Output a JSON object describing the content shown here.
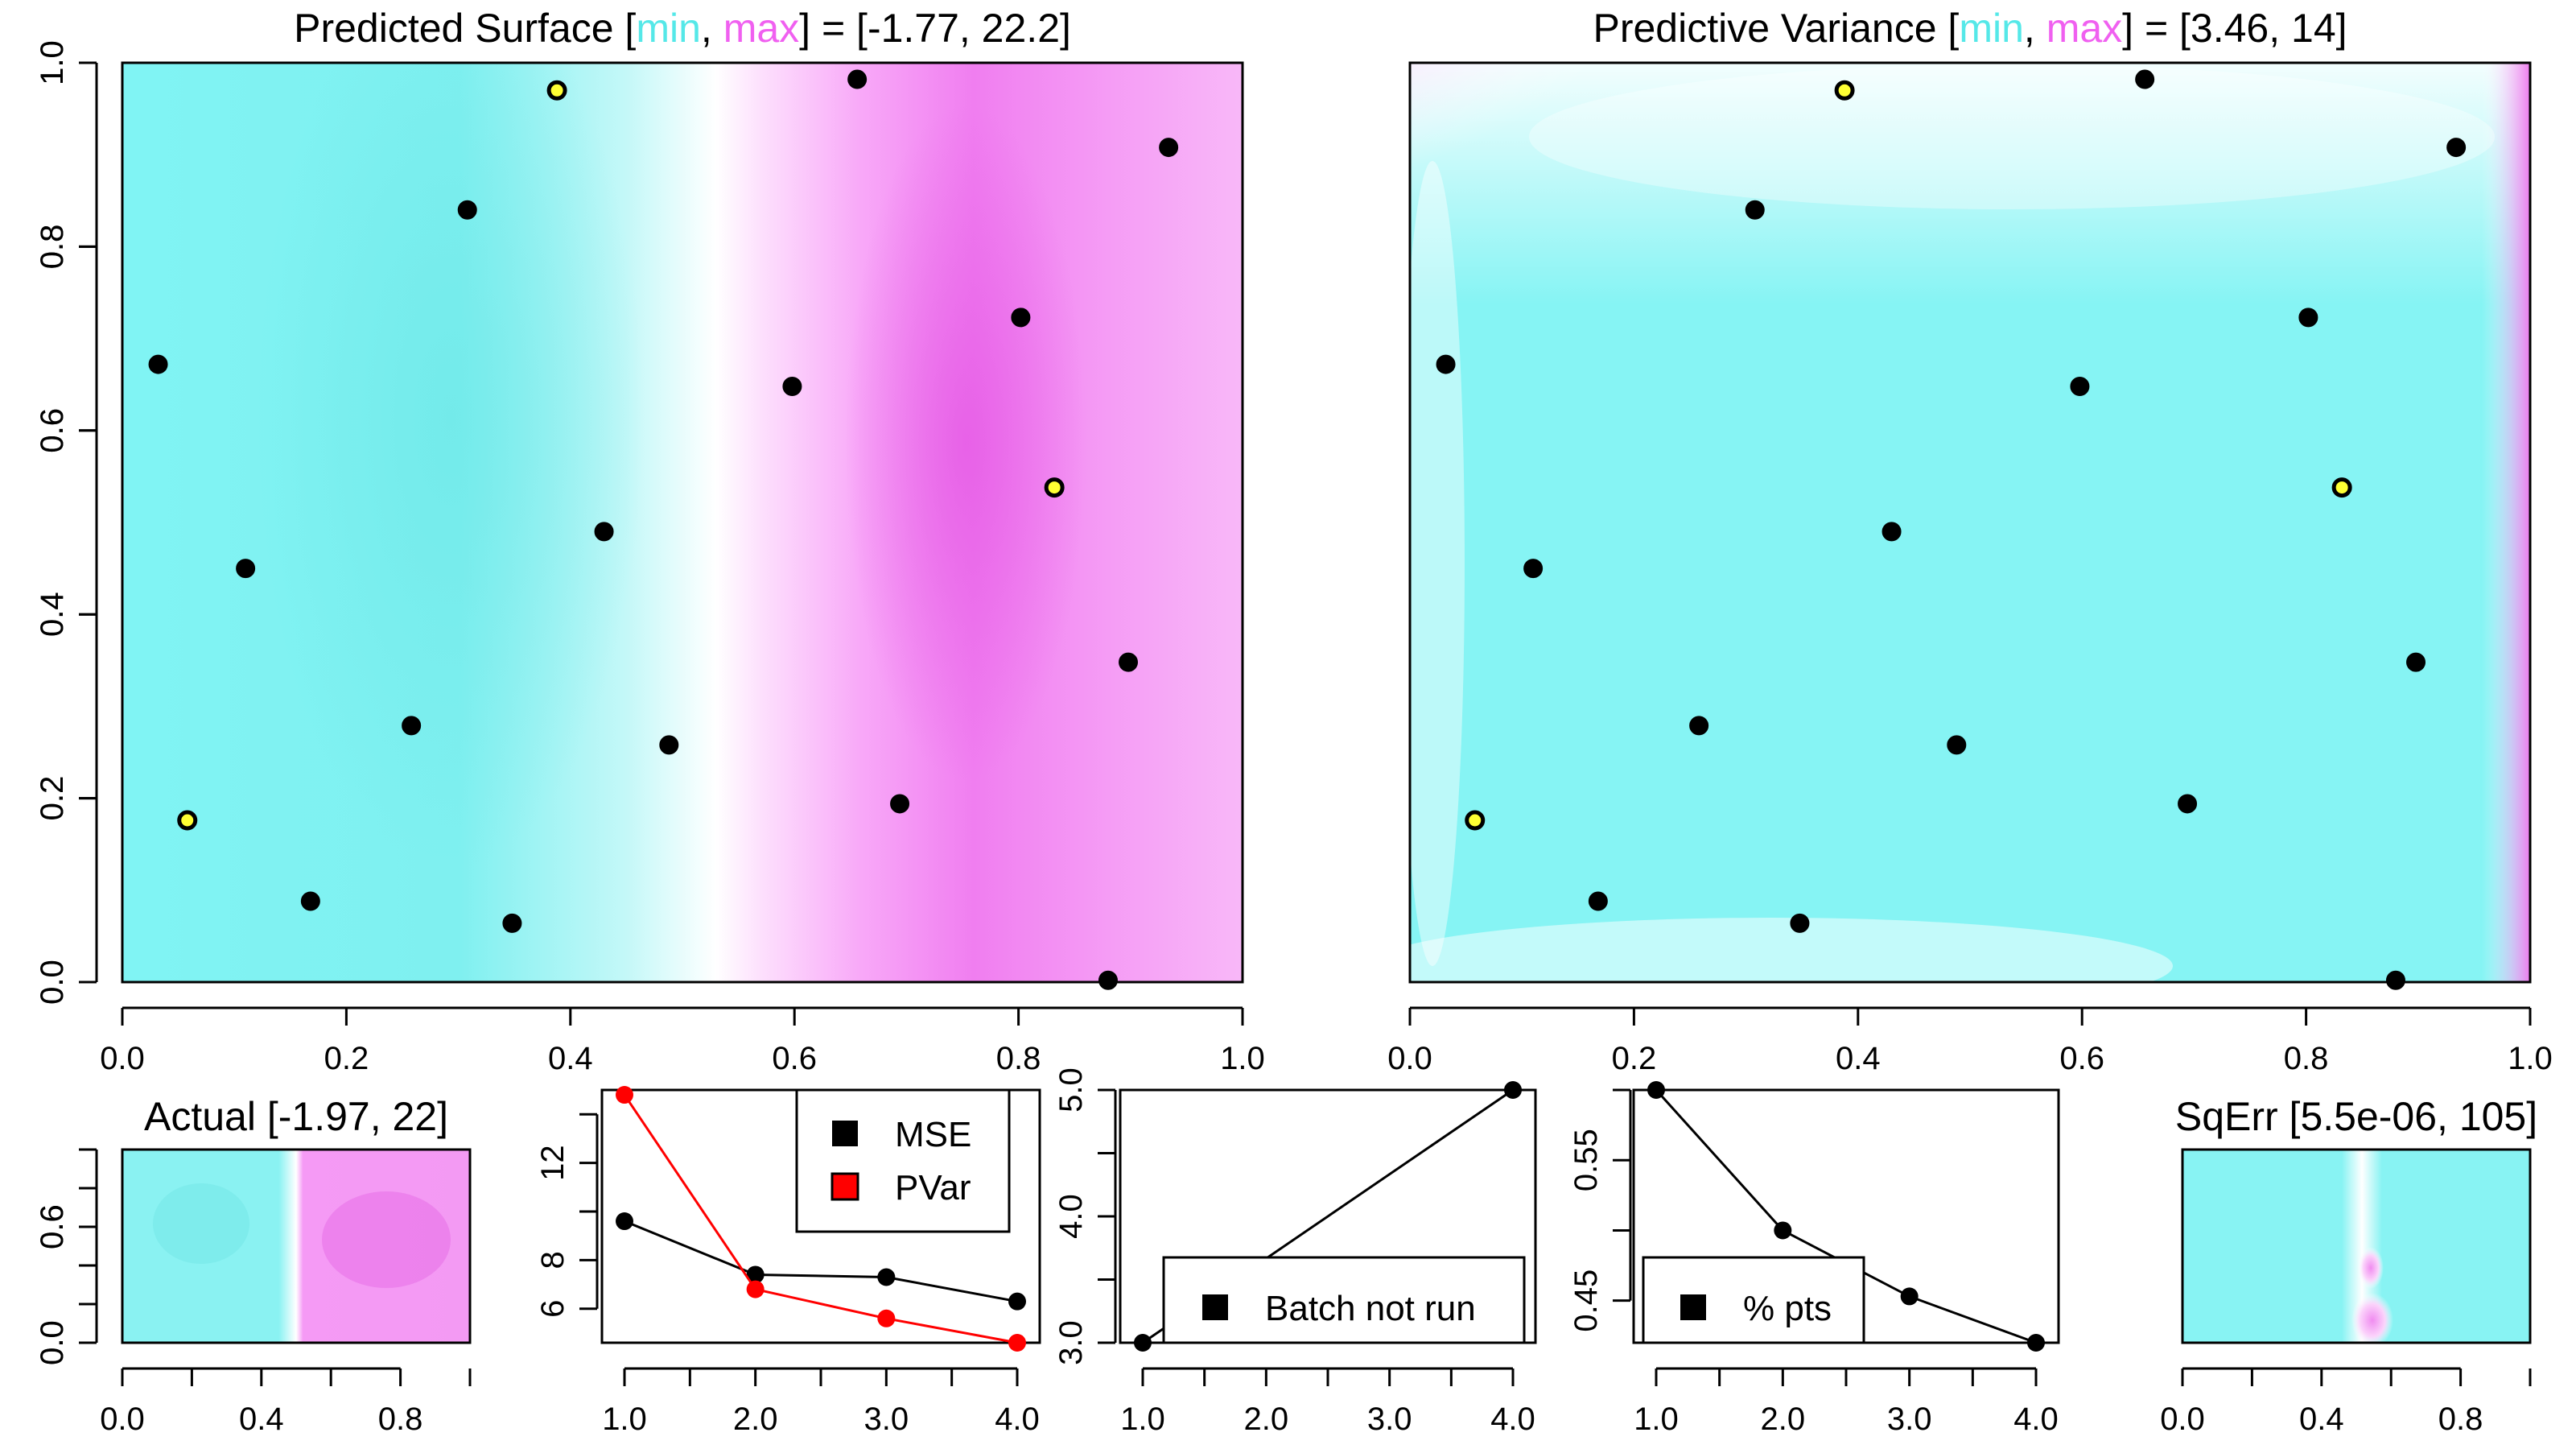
{
  "colors": {
    "low": "#7FFFFF",
    "mid": "#FFFFFF",
    "high": "#FF7FFF",
    "point": "#000000",
    "highlight": "#FFFF33",
    "pvar": "#FF0000"
  },
  "chart_data": [
    {
      "id": "predicted-surface",
      "type": "heatmap",
      "title_parts": [
        "Predicted Surface [",
        "min",
        ", ",
        "max",
        "] = [-1.77, 22.2]"
      ],
      "xlim": [
        0,
        1
      ],
      "ylim": [
        0,
        1
      ],
      "x_ticks": [
        "0.0",
        "0.2",
        "0.4",
        "0.6",
        "0.8",
        "1.0"
      ],
      "y_ticks": [
        "0.0",
        "0.2",
        "0.4",
        "0.6",
        "0.8",
        "1.0"
      ],
      "range": [
        -1.77,
        22.2
      ],
      "points": [
        {
          "x": 0.032,
          "y": 0.672
        },
        {
          "x": 0.11,
          "y": 0.45
        },
        {
          "x": 0.168,
          "y": 0.088
        },
        {
          "x": 0.258,
          "y": 0.279
        },
        {
          "x": 0.308,
          "y": 0.84
        },
        {
          "x": 0.348,
          "y": 0.064
        },
        {
          "x": 0.43,
          "y": 0.49
        },
        {
          "x": 0.488,
          "y": 0.258
        },
        {
          "x": 0.598,
          "y": 0.648
        },
        {
          "x": 0.656,
          "y": 0.982
        },
        {
          "x": 0.694,
          "y": 0.194
        },
        {
          "x": 0.802,
          "y": 0.723
        },
        {
          "x": 0.88,
          "y": 0.002
        },
        {
          "x": 0.898,
          "y": 0.348
        },
        {
          "x": 0.934,
          "y": 0.908
        }
      ],
      "highlight_points": [
        {
          "x": 0.058,
          "y": 0.176
        },
        {
          "x": 0.388,
          "y": 0.97
        },
        {
          "x": 0.832,
          "y": 0.538
        }
      ]
    },
    {
      "id": "predictive-variance",
      "type": "heatmap",
      "title_parts": [
        "Predictive Variance [",
        "min",
        ", ",
        "max",
        "] = [3.46, 14]"
      ],
      "xlim": [
        0,
        1
      ],
      "ylim": [
        0,
        1
      ],
      "x_ticks": [
        "0.0",
        "0.2",
        "0.4",
        "0.6",
        "0.8",
        "1.0"
      ],
      "y_ticks": [
        "0.0",
        "0.2",
        "0.4",
        "0.6",
        "0.8",
        "1.0"
      ],
      "range": [
        3.46,
        14
      ],
      "points": [
        {
          "x": 0.032,
          "y": 0.672
        },
        {
          "x": 0.11,
          "y": 0.45
        },
        {
          "x": 0.168,
          "y": 0.088
        },
        {
          "x": 0.258,
          "y": 0.279
        },
        {
          "x": 0.308,
          "y": 0.84
        },
        {
          "x": 0.348,
          "y": 0.064
        },
        {
          "x": 0.43,
          "y": 0.49
        },
        {
          "x": 0.488,
          "y": 0.258
        },
        {
          "x": 0.598,
          "y": 0.648
        },
        {
          "x": 0.656,
          "y": 0.982
        },
        {
          "x": 0.694,
          "y": 0.194
        },
        {
          "x": 0.802,
          "y": 0.723
        },
        {
          "x": 0.88,
          "y": 0.002
        },
        {
          "x": 0.898,
          "y": 0.348
        },
        {
          "x": 0.934,
          "y": 0.908
        }
      ],
      "highlight_points": [
        {
          "x": 0.058,
          "y": 0.176
        },
        {
          "x": 0.388,
          "y": 0.97
        },
        {
          "x": 0.832,
          "y": 0.538
        }
      ]
    },
    {
      "id": "actual",
      "type": "heatmap",
      "title": "Actual [-1.97, 22]",
      "xlim": [
        0,
        1
      ],
      "ylim": [
        0,
        1
      ],
      "x_ticks": [
        "0.0",
        "0.4",
        "0.8"
      ],
      "y_ticks": [
        "0.0",
        "0.6"
      ],
      "range": [
        -1.97,
        22
      ]
    },
    {
      "id": "mse-pvar",
      "type": "line",
      "x": [
        1,
        2,
        3,
        4
      ],
      "xlim": [
        1,
        4
      ],
      "ylim": [
        4.6,
        15
      ],
      "x_ticks": [
        "1.0",
        "2.0",
        "3.0",
        "4.0"
      ],
      "y_ticks": [
        "6",
        "8",
        "12"
      ],
      "series": [
        {
          "name": "MSE",
          "values": [
            9.6,
            7.4,
            7.3,
            6.3
          ]
        },
        {
          "name": "PVar",
          "values": [
            14.8,
            6.8,
            5.6,
            4.6
          ]
        }
      ],
      "legend": "top-right"
    },
    {
      "id": "batch-not-run",
      "type": "line",
      "x": [
        1,
        4
      ],
      "xlim": [
        1,
        4
      ],
      "ylim": [
        3,
        5
      ],
      "x_ticks": [
        "1.0",
        "2.0",
        "3.0",
        "4.0"
      ],
      "y_ticks": [
        "3.0",
        "4.0",
        "5.0"
      ],
      "series": [
        {
          "name": "Batch not run",
          "values": [
            3,
            5
          ]
        }
      ],
      "legend": "bottom-right"
    },
    {
      "id": "pct-pts",
      "type": "line",
      "x": [
        1,
        2,
        3,
        4
      ],
      "xlim": [
        1,
        4
      ],
      "ylim": [
        0.42,
        0.6
      ],
      "x_ticks": [
        "1.0",
        "2.0",
        "3.0",
        "4.0"
      ],
      "y_ticks": [
        "0.45",
        "0.55"
      ],
      "series": [
        {
          "name": "% pts",
          "values": [
            0.6,
            0.5,
            0.453,
            0.42
          ]
        }
      ],
      "legend": "bottom-left"
    },
    {
      "id": "sqerr",
      "type": "heatmap",
      "title": "SqErr [5.5e-06, 105]",
      "xlim": [
        0,
        1
      ],
      "ylim": [
        0,
        1
      ],
      "x_ticks": [
        "0.0",
        "0.4",
        "0.8"
      ],
      "y_ticks": [
        "0.0",
        "0.6"
      ],
      "range": [
        5.5e-06,
        105
      ]
    }
  ]
}
